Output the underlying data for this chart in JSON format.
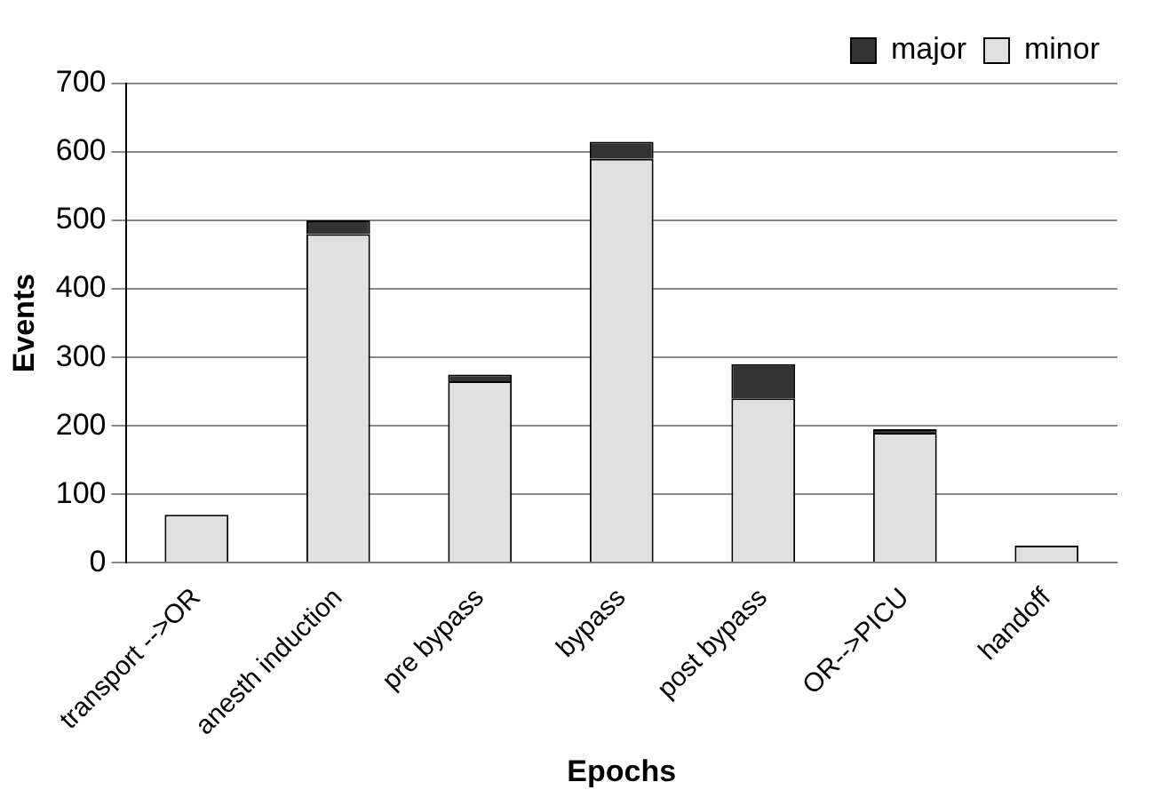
{
  "chart_data": {
    "type": "bar",
    "xlabel": "Epochs",
    "ylabel": "Events",
    "categories": [
      "transport -->OR",
      "anesth induction",
      "pre bypass",
      "bypass",
      "post bypass",
      "OR-->PICU",
      "handoff"
    ],
    "series": [
      {
        "name": "minor",
        "color": "#e0e0e0",
        "values": [
          70,
          480,
          265,
          590,
          240,
          190,
          25
        ]
      },
      {
        "name": "major",
        "color": "#333333",
        "values": [
          0,
          20,
          10,
          25,
          50,
          5,
          0
        ]
      }
    ],
    "stacked": true,
    "ylim": [
      0,
      700
    ],
    "yticks": [
      0,
      100,
      200,
      300,
      400,
      500,
      600,
      700
    ],
    "grid": "y",
    "legend": "top right"
  }
}
